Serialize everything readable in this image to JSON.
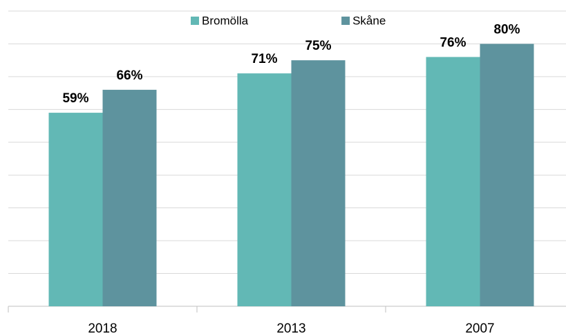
{
  "chart_data": {
    "type": "bar",
    "categories": [
      "2018",
      "2013",
      "2007"
    ],
    "series": [
      {
        "name": "Bromölla",
        "color": "#62b8b5",
        "values": [
          59,
          71,
          76
        ],
        "value_labels": [
          "59%",
          "71%",
          "76%"
        ]
      },
      {
        "name": "Skåne",
        "color": "#5e939e",
        "values": [
          66,
          75,
          80
        ],
        "value_labels": [
          "66%",
          "75%",
          "80%"
        ]
      }
    ],
    "ylim": [
      0,
      90
    ],
    "yticks": [
      0,
      10,
      20,
      30,
      40,
      50,
      60,
      70,
      80,
      90
    ],
    "grid": true,
    "legend": "top"
  }
}
